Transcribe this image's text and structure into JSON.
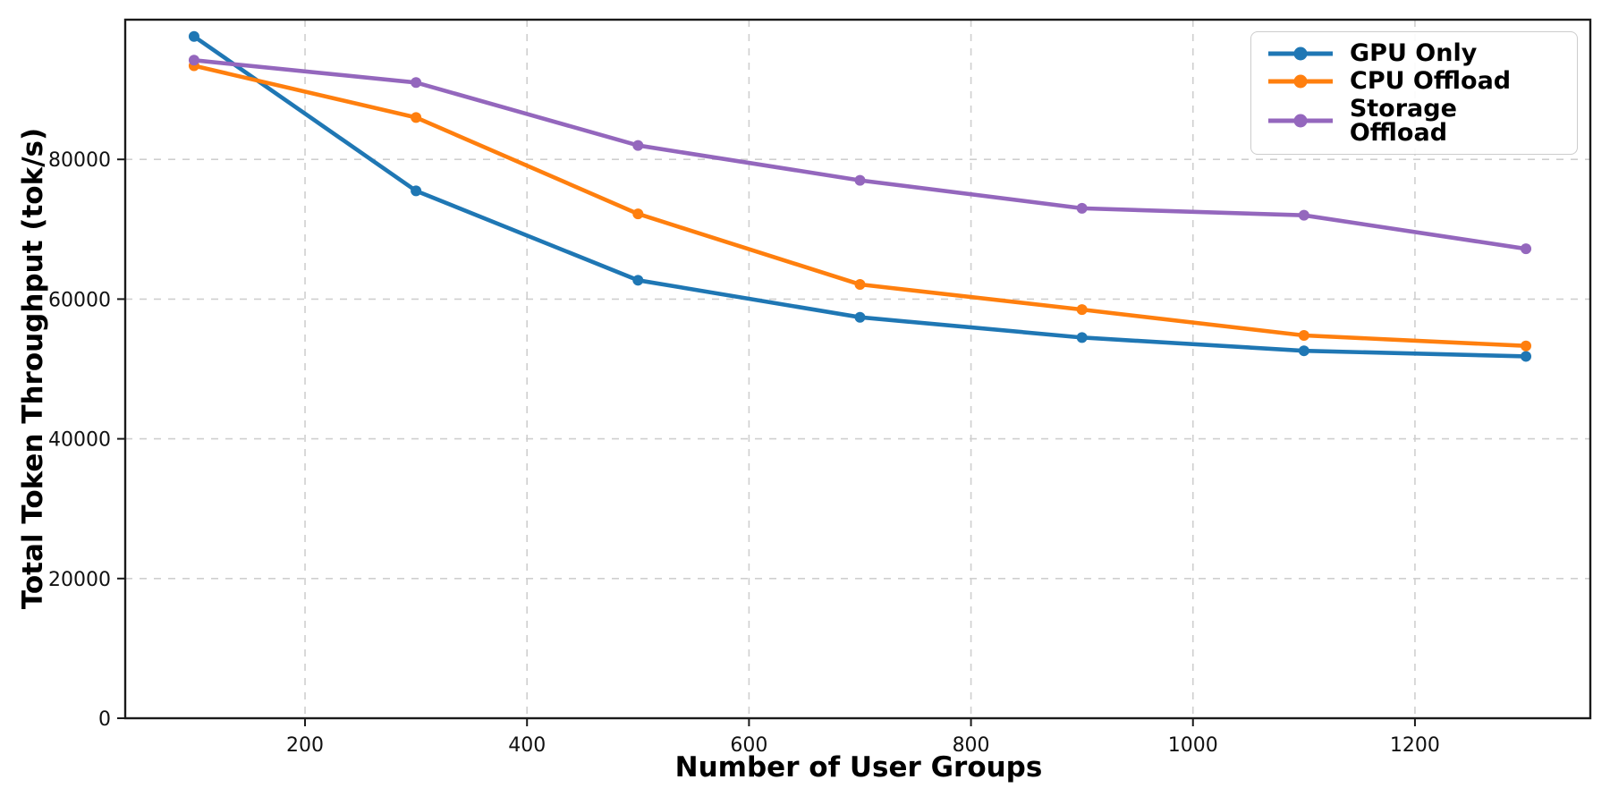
{
  "figure": {
    "background": "#ffffff"
  },
  "chart_data": {
    "type": "line",
    "xlabel": "Number of User Groups",
    "ylabel": "Total Token Throughput (tok/s)",
    "x": [
      100,
      300,
      500,
      700,
      900,
      1100,
      1300
    ],
    "series": [
      {
        "name": "GPU Only",
        "color": "#1f77b4",
        "marker": "circle",
        "values": [
          97600,
          75500,
          62700,
          57400,
          54500,
          52600,
          51800
        ]
      },
      {
        "name": "CPU Offload",
        "color": "#ff7f0e",
        "marker": "circle",
        "values": [
          93400,
          86000,
          72200,
          62100,
          58500,
          54800,
          53300
        ]
      },
      {
        "name": "Storage Offload",
        "color": "#9467bd",
        "marker": "circle",
        "values": [
          94200,
          91000,
          82000,
          77000,
          73000,
          72000,
          67200
        ]
      }
    ],
    "xlim": [
      38,
      1358
    ],
    "ylim": [
      0,
      100000
    ],
    "xticks": [
      200,
      400,
      600,
      800,
      1000,
      1200
    ],
    "yticks": [
      0,
      20000,
      40000,
      60000,
      80000
    ],
    "grid": true,
    "grid_style": "dashed",
    "grid_color": "#cfcfcf",
    "axis_color": "#1a1a1a",
    "legend_position": "upper right"
  }
}
